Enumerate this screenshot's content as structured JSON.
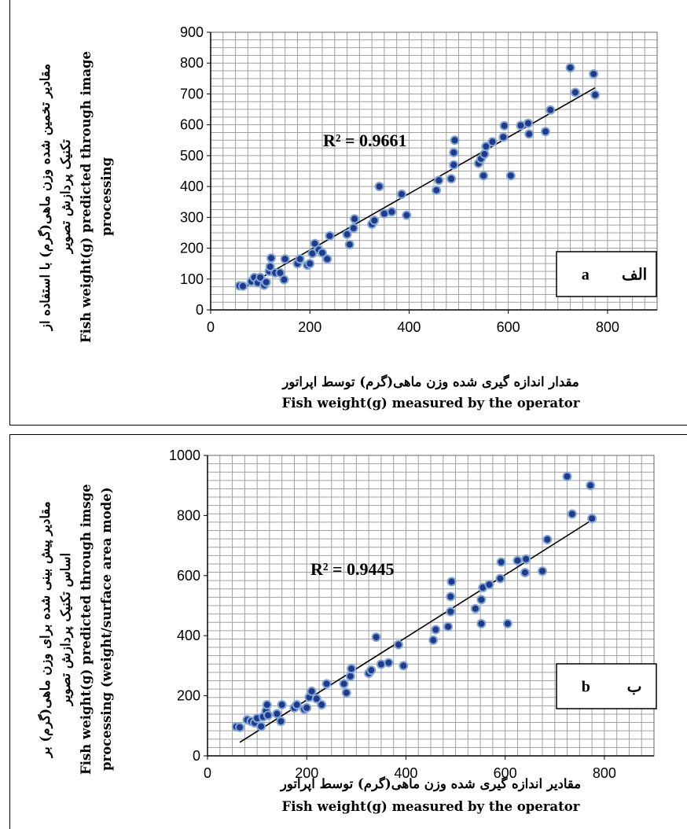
{
  "chart_data": [
    {
      "type": "scatter",
      "panel_tag": "a",
      "panel_tag_fa": "الف",
      "r2_label": "R² = 0.9661",
      "ylabel_fa": [
        "مقادیر تخمین شده وزن ماهی(گرم) با استفاده از",
        "تکنیک پردازش تصویر"
      ],
      "ylabel_en": [
        "Fish weight(g) predicted through image",
        "processing"
      ],
      "xlabel_fa": "مقدار اندازه گیری شده وزن ماهی(گرم) توسط اپراتور",
      "xlabel_en": "Fish weight(g) measured by the operator",
      "xlim": [
        0,
        900
      ],
      "ylim": [
        0,
        900
      ],
      "x_ticks": [
        0,
        200,
        400,
        600,
        800
      ],
      "y_ticks": [
        0,
        100,
        200,
        300,
        400,
        500,
        600,
        700,
        800,
        900
      ],
      "grid": true,
      "trendline": {
        "x": [
          70,
          775
        ],
        "y": [
          75,
          720
        ]
      },
      "points": [
        [
          58,
          78
        ],
        [
          65,
          77
        ],
        [
          82,
          92
        ],
        [
          88,
          105
        ],
        [
          95,
          88
        ],
        [
          100,
          105
        ],
        [
          108,
          80
        ],
        [
          112,
          90
        ],
        [
          118,
          125
        ],
        [
          120,
          140
        ],
        [
          122,
          168
        ],
        [
          130,
          120
        ],
        [
          140,
          120
        ],
        [
          148,
          98
        ],
        [
          150,
          165
        ],
        [
          175,
          150
        ],
        [
          180,
          165
        ],
        [
          195,
          145
        ],
        [
          200,
          150
        ],
        [
          205,
          183
        ],
        [
          210,
          215
        ],
        [
          218,
          195
        ],
        [
          225,
          185
        ],
        [
          235,
          165
        ],
        [
          240,
          240
        ],
        [
          275,
          245
        ],
        [
          280,
          212
        ],
        [
          288,
          265
        ],
        [
          290,
          295
        ],
        [
          325,
          278
        ],
        [
          330,
          290
        ],
        [
          340,
          400
        ],
        [
          350,
          312
        ],
        [
          365,
          318
        ],
        [
          385,
          375
        ],
        [
          395,
          307
        ],
        [
          455,
          388
        ],
        [
          460,
          420
        ],
        [
          485,
          425
        ],
        [
          490,
          470
        ],
        [
          490,
          510
        ],
        [
          492,
          550
        ],
        [
          540,
          475
        ],
        [
          545,
          490
        ],
        [
          550,
          435
        ],
        [
          552,
          505
        ],
        [
          555,
          530
        ],
        [
          568,
          545
        ],
        [
          590,
          560
        ],
        [
          592,
          597
        ],
        [
          605,
          435
        ],
        [
          625,
          598
        ],
        [
          640,
          605
        ],
        [
          642,
          570
        ],
        [
          675,
          578
        ],
        [
          685,
          648
        ],
        [
          725,
          785
        ],
        [
          735,
          705
        ],
        [
          772,
          765
        ],
        [
          775,
          697
        ]
      ]
    },
    {
      "type": "scatter",
      "panel_tag": "b",
      "panel_tag_fa": "ب",
      "r2_label": "R² = 0.9445",
      "ylabel_fa": [
        "مقادیر پیش بینی شده برای وزن ماهی(گرم) بر",
        "اساس تکنیک پردازش تصویر"
      ],
      "ylabel_en": [
        "Fish weight(g) predicted through imsge",
        "processing (weight/surface area mode)"
      ],
      "xlabel_fa": "مقادیر اندازه گیری شده وزن ماهی(گرم) توسط اپراتور",
      "xlabel_en": "Fish weight(g) measured by the operator",
      "xlim": [
        0,
        900
      ],
      "ylim": [
        0,
        1000
      ],
      "x_ticks": [
        0,
        200,
        400,
        600,
        800
      ],
      "y_ticks": [
        0,
        200,
        400,
        600,
        800,
        1000
      ],
      "grid": true,
      "trendline": {
        "x": [
          65,
          775
        ],
        "y": [
          45,
          785
        ]
      },
      "points": [
        [
          58,
          97
        ],
        [
          65,
          95
        ],
        [
          80,
          120
        ],
        [
          88,
          115
        ],
        [
          95,
          110
        ],
        [
          100,
          125
        ],
        [
          108,
          98
        ],
        [
          112,
          130
        ],
        [
          118,
          150
        ],
        [
          120,
          170
        ],
        [
          122,
          135
        ],
        [
          140,
          140
        ],
        [
          148,
          115
        ],
        [
          150,
          170
        ],
        [
          175,
          160
        ],
        [
          180,
          170
        ],
        [
          195,
          155
        ],
        [
          200,
          160
        ],
        [
          205,
          195
        ],
        [
          210,
          215
        ],
        [
          220,
          190
        ],
        [
          230,
          170
        ],
        [
          240,
          240
        ],
        [
          275,
          240
        ],
        [
          280,
          210
        ],
        [
          288,
          265
        ],
        [
          290,
          290
        ],
        [
          325,
          275
        ],
        [
          330,
          285
        ],
        [
          340,
          395
        ],
        [
          350,
          305
        ],
        [
          365,
          310
        ],
        [
          385,
          370
        ],
        [
          395,
          300
        ],
        [
          455,
          385
        ],
        [
          460,
          420
        ],
        [
          485,
          430
        ],
        [
          490,
          480
        ],
        [
          490,
          530
        ],
        [
          492,
          580
        ],
        [
          540,
          490
        ],
        [
          552,
          440
        ],
        [
          552,
          520
        ],
        [
          555,
          560
        ],
        [
          568,
          570
        ],
        [
          590,
          590
        ],
        [
          592,
          645
        ],
        [
          605,
          440
        ],
        [
          625,
          650
        ],
        [
          640,
          610
        ],
        [
          642,
          655
        ],
        [
          675,
          615
        ],
        [
          685,
          720
        ],
        [
          725,
          930
        ],
        [
          735,
          805
        ],
        [
          772,
          900
        ],
        [
          775,
          790
        ]
      ]
    }
  ]
}
